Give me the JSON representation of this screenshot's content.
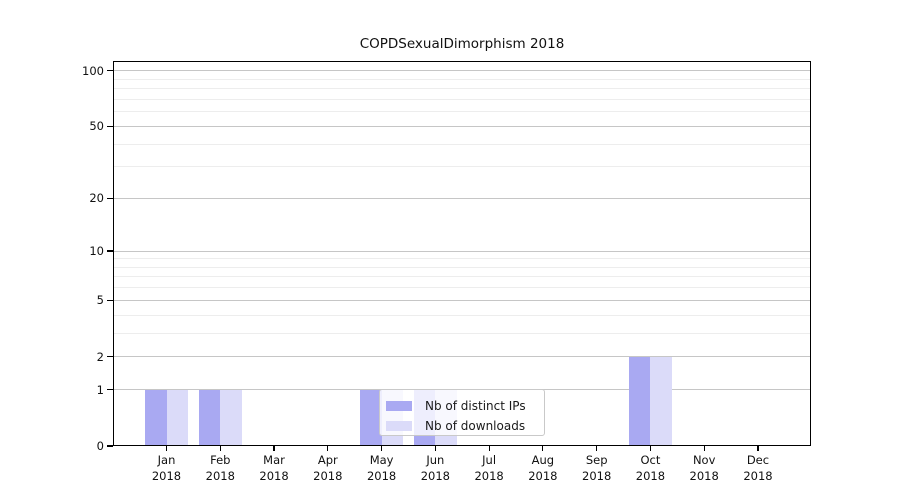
{
  "chart_data": {
    "type": "bar",
    "title": "COPDSexualDimorphism 2018",
    "categories": [
      "Jan 2018",
      "Feb 2018",
      "Mar 2018",
      "Apr 2018",
      "May 2018",
      "Jun 2018",
      "Jul 2018",
      "Aug 2018",
      "Sep 2018",
      "Oct 2018",
      "Nov 2018",
      "Dec 2018"
    ],
    "series": [
      {
        "name": "Nb of distinct IPs",
        "color": "#a9a9f2",
        "values": [
          1,
          1,
          0,
          0,
          1,
          1,
          0,
          0,
          0,
          2,
          0,
          0
        ]
      },
      {
        "name": "Nb of downloads",
        "color": "#dbdbf9",
        "values": [
          1,
          1,
          0,
          0,
          1,
          1,
          0,
          0,
          0,
          2,
          0,
          0
        ]
      }
    ],
    "xlabel": "",
    "ylabel": "",
    "yscale": "log1p",
    "ylim": [
      0,
      100
    ],
    "yticks": [
      0,
      1,
      2,
      5,
      10,
      20,
      50,
      100
    ],
    "y_minor_gridlines": [
      3,
      4,
      6,
      7,
      8,
      9,
      30,
      40,
      60,
      70,
      80,
      90
    ],
    "grid": "horizontal",
    "legend": {
      "position": "bottom-center",
      "entries": [
        "Nb of distinct IPs",
        "Nb of downloads"
      ]
    },
    "colors": {
      "major_grid": "#c6c6c6",
      "minor_grid": "#ededed",
      "axis": "#000000",
      "text": "#111111"
    }
  }
}
